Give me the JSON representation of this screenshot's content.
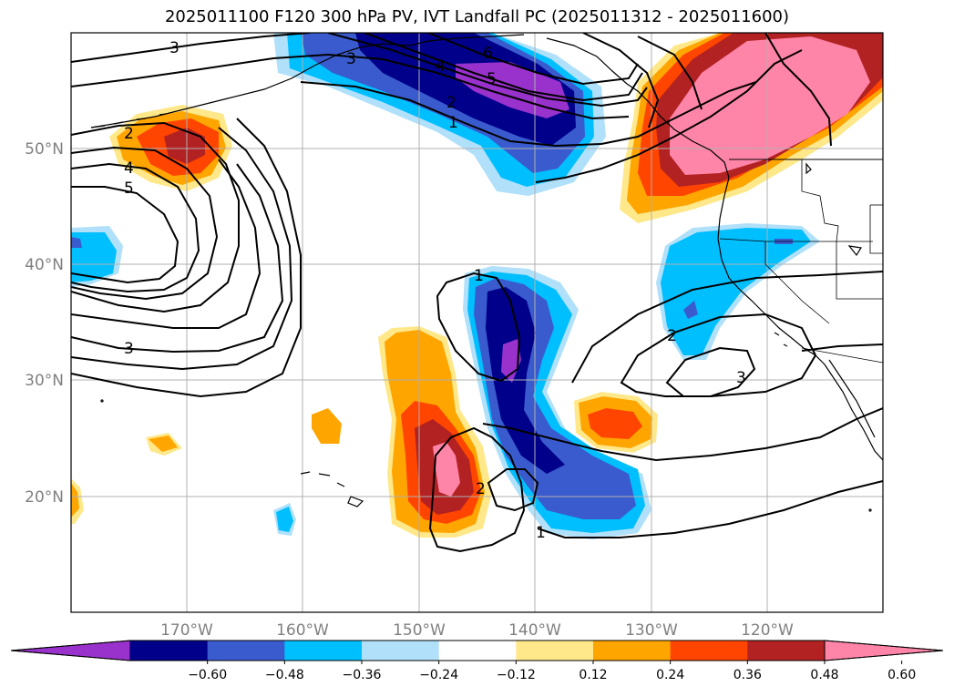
{
  "title": "2025011100 F120 300 hPa PV, IVT Landfall PC (2025011312 - 2025011600)",
  "axes": {
    "lon_labels": [
      "170°W",
      "160°W",
      "150°W",
      "140°W",
      "130°W",
      "120°W"
    ],
    "lat_labels": [
      "50°N",
      "40°N",
      "30°N",
      "20°N"
    ]
  },
  "colorbar": {
    "ticks": [
      "−0.60",
      "−0.48",
      "−0.36",
      "−0.24",
      "−0.12",
      "0.12",
      "0.24",
      "0.36",
      "0.48",
      "0.60"
    ],
    "colors": [
      "#9932CC",
      "#00008B",
      "#3A5BCD",
      "#00BFFF",
      "#B0E0FA",
      "#FFFFFF",
      "#FFE88A",
      "#FFA500",
      "#FF4500",
      "#B22222",
      "#FF85A8"
    ],
    "extend": "both"
  },
  "contour_labels": {
    "ak_3": "3",
    "ak_5": "5",
    "ak_4": "4",
    "ak_2": "2",
    "ak_1": "1",
    "ak_6": "6",
    "nw_3": "3",
    "w_2": "2",
    "w_4": "4",
    "w_5": "5",
    "sw_3": "3",
    "c_1": "1",
    "s_2": "2",
    "s_1": "1",
    "e_2": "2",
    "e_3": "3"
  },
  "colors": {
    "grid": "#b0b0b0",
    "contour": "#000000",
    "coast": "#000000"
  }
}
